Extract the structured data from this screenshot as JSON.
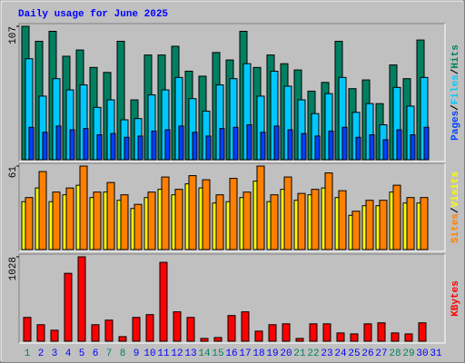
{
  "title": "Daily usage for June 2025",
  "chart_data": [
    {
      "type": "bar",
      "legend_separator": "/",
      "ylim": [
        0,
        107
      ],
      "yticks": [
        107
      ],
      "series": [
        {
          "name": "Hits",
          "color": "#008060",
          "values": [
            107,
            95,
            103,
            83,
            88,
            74,
            70,
            95,
            48,
            84,
            84,
            91,
            71,
            67,
            86,
            80,
            103,
            74,
            84,
            77,
            72,
            55,
            62,
            95,
            57,
            64,
            45,
            76,
            65,
            96,
            null
          ]
        },
        {
          "name": "Files",
          "color": "#00c8ff",
          "values": [
            81,
            51,
            65,
            56,
            60,
            42,
            48,
            32,
            33,
            52,
            56,
            66,
            49,
            39,
            60,
            65,
            77,
            51,
            71,
            59,
            48,
            37,
            53,
            66,
            38,
            45,
            28,
            58,
            43,
            66,
            null
          ]
        },
        {
          "name": "Pages",
          "color": "#0040ff",
          "values": [
            26,
            22,
            27,
            24,
            25,
            20,
            21,
            18,
            19,
            23,
            24,
            27,
            22,
            19,
            25,
            26,
            28,
            22,
            27,
            24,
            21,
            19,
            23,
            26,
            18,
            20,
            16,
            24,
            20,
            26,
            null
          ]
        }
      ]
    },
    {
      "type": "bar",
      "legend_separator": "/",
      "ylim": [
        0,
        61
      ],
      "yticks": [
        61
      ],
      "series": [
        {
          "name": "Visits",
          "color": "#ffff00",
          "values": [
            35,
            45,
            35,
            40,
            47,
            38,
            42,
            36,
            30,
            38,
            44,
            40,
            48,
            45,
            34,
            35,
            38,
            50,
            35,
            44,
            36,
            40,
            45,
            38,
            25,
            32,
            32,
            42,
            34,
            34,
            null
          ]
        },
        {
          "name": "Sites",
          "color": "#ff8000",
          "values": [
            38,
            57,
            42,
            45,
            61,
            42,
            49,
            40,
            33,
            42,
            53,
            44,
            54,
            51,
            40,
            52,
            42,
            61,
            40,
            53,
            41,
            44,
            56,
            43,
            28,
            36,
            36,
            47,
            38,
            38,
            null
          ]
        }
      ]
    },
    {
      "type": "bar",
      "ylim": [
        0,
        1028
      ],
      "yticks": [
        1028
      ],
      "categories": [
        "1",
        "2",
        "3",
        "4",
        "5",
        "6",
        "7",
        "8",
        "9",
        "10",
        "11",
        "12",
        "13",
        "14",
        "15",
        "16",
        "17",
        "18",
        "19",
        "20",
        "21",
        "22",
        "23",
        "24",
        "25",
        "26",
        "27",
        "28",
        "29",
        "30",
        "31"
      ],
      "category_colors": [
        "#008060",
        "#0000ff",
        "#0000ff",
        "#0000ff",
        "#0000ff",
        "#0000ff",
        "#008060",
        "#008060",
        "#0000ff",
        "#0000ff",
        "#0000ff",
        "#0000ff",
        "#0000ff",
        "#008060",
        "#008060",
        "#0000ff",
        "#0000ff",
        "#0000ff",
        "#0000ff",
        "#0000ff",
        "#008060",
        "#008060",
        "#0000ff",
        "#0000ff",
        "#0000ff",
        "#0000ff",
        "#0000ff",
        "#008060",
        "#008060",
        "#0000ff",
        "#0000ff"
      ],
      "series": [
        {
          "name": "KBytes",
          "color": "#ff0000",
          "values": [
            290,
            201,
            134,
            827,
            1028,
            201,
            257,
            56,
            290,
            324,
            961,
            358,
            290,
            34,
            45,
            313,
            358,
            123,
            201,
            212,
            34,
            212,
            212,
            101,
            89,
            212,
            224,
            101,
            89,
            224,
            null
          ]
        }
      ]
    }
  ]
}
